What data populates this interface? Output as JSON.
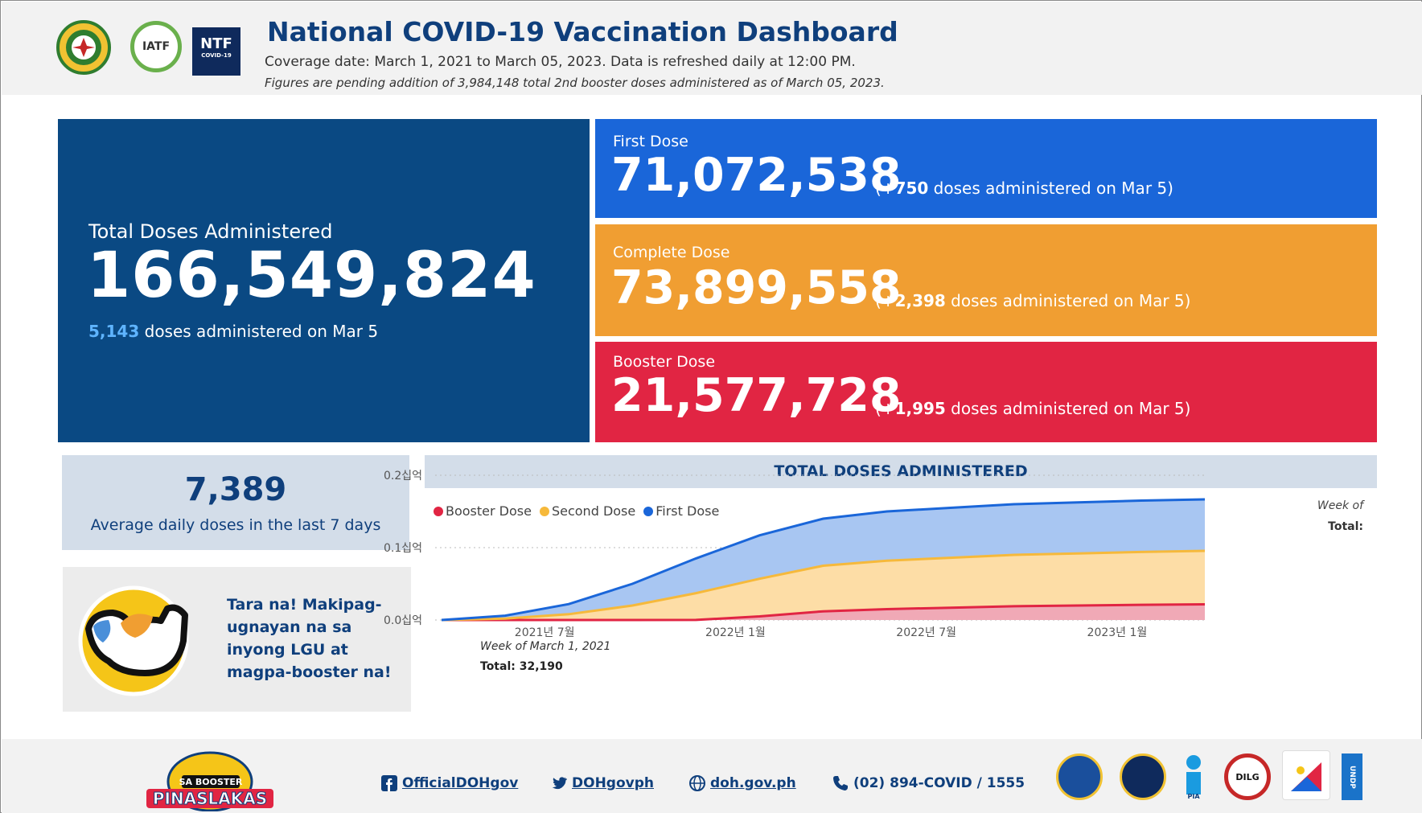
{
  "header": {
    "title": "National COVID-19 Vaccination Dashboard",
    "coverage": "Coverage date: March 1, 2021 to March 05, 2023. Data is refreshed daily at 12:00 PM.",
    "note": "Figures are pending addition of 3,984,148 total 2nd booster doses administered as of March 05, 2023.",
    "logos": [
      {
        "icon": "doh-seal-icon"
      },
      {
        "icon": "iatf-logo-icon",
        "text": "IATF"
      },
      {
        "icon": "ntf-logo-icon",
        "text": "NTF",
        "subtext": "COVID-19"
      }
    ]
  },
  "total": {
    "label": "Total Doses Administered",
    "value": "166,549,824",
    "today": "5,143",
    "today_suffix": " doses administered on Mar 5",
    "color": "#0a4983"
  },
  "doses": [
    {
      "label": "First Dose",
      "value": "71,072,538",
      "delta_prefix": "(+",
      "delta": "750",
      "delta_suffix": " doses administered on Mar 5)",
      "color": "#1a66d9"
    },
    {
      "label": "Complete Dose",
      "value": "73,899,558",
      "delta_prefix": "(+",
      "delta": "2,398",
      "delta_suffix": " doses administered on Mar 5)",
      "color": "#f09e32"
    },
    {
      "label": "Booster Dose",
      "value": "21,577,728",
      "delta_prefix": "(+",
      "delta": "1,995",
      "delta_suffix": " doses administered on Mar 5)",
      "color": "#e12543"
    }
  ],
  "average": {
    "value": "7,389",
    "label": "Average daily doses in the last 7 days"
  },
  "promo": {
    "text": "Tara na! Makipag-ugnayan na sa inyong LGU at magpa-booster na!"
  },
  "chart_data": {
    "type": "area",
    "title": "TOTAL DOSES ADMINISTERED",
    "legend": [
      "Booster Dose",
      "Second Dose",
      "First Dose"
    ],
    "legend_placement": "top-left",
    "y_ticks": [
      "0.2십억",
      "0.1십억",
      "0.0십억"
    ],
    "x_ticks": [
      "2021년 7월",
      "2022년 1월",
      "2022년 7월",
      "2023년 1월"
    ],
    "ylim": [
      0,
      0.2
    ],
    "grid": true,
    "stacked": true,
    "x": [
      "2021-03",
      "2021-05",
      "2021-07",
      "2021-09",
      "2021-11",
      "2022-01",
      "2022-03",
      "2022-05",
      "2022-07",
      "2022-09",
      "2022-11",
      "2023-01",
      "2023-03"
    ],
    "series": [
      {
        "name": "Booster Dose",
        "color": "#e12543",
        "values": [
          0,
          0,
          0,
          0,
          0.0001,
          0.005,
          0.012,
          0.015,
          0.017,
          0.019,
          0.02,
          0.021,
          0.0216
        ]
      },
      {
        "name": "Second Dose",
        "color": "#f6b93b",
        "values": [
          0,
          0.002,
          0.008,
          0.02,
          0.037,
          0.052,
          0.063,
          0.067,
          0.069,
          0.071,
          0.072,
          0.073,
          0.0739
        ]
      },
      {
        "name": "First Dose",
        "color": "#1a66d9",
        "values": [
          0,
          0.004,
          0.014,
          0.03,
          0.048,
          0.06,
          0.065,
          0.068,
          0.069,
          0.07,
          0.0705,
          0.071,
          0.0711
        ]
      }
    ],
    "annotation_start": {
      "label": "Week of March 1, 2021",
      "total": "Total: 32,190"
    },
    "annotation_end": {
      "label": "Week of",
      "total": "Total:"
    }
  },
  "footer": {
    "brand": "SA BOOSTER PINASLAKAS",
    "facebook": "OfficialDOHgov",
    "twitter": "DOHgovph",
    "website": "doh.gov.ph",
    "phone": "(02) 894-COVID / 1555",
    "agencies": [
      {
        "icon": "pcoo-seal-icon"
      },
      {
        "icon": "deped-seal-icon"
      },
      {
        "icon": "pia-logo-icon",
        "text": "PIA"
      },
      {
        "icon": "dilg-logo-icon",
        "text": "DILG"
      },
      {
        "icon": "agency-seal-icon"
      },
      {
        "icon": "undp-logo-icon",
        "text": "UNDP"
      }
    ]
  }
}
